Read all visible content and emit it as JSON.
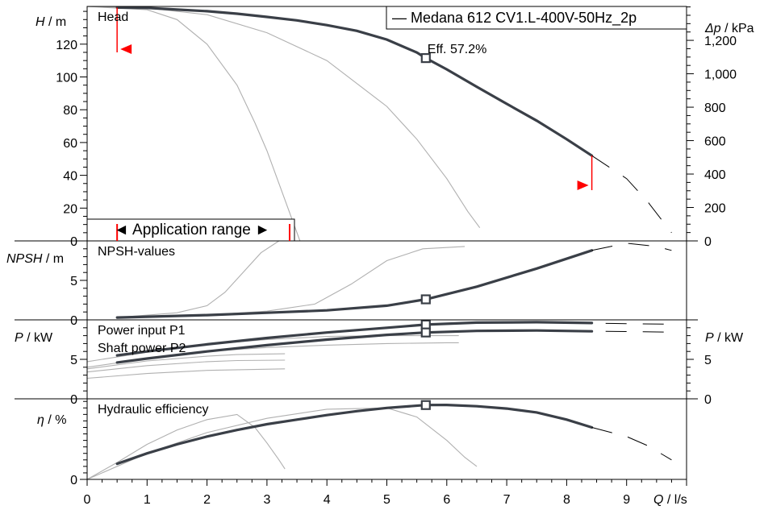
{
  "chart_data": {
    "type": "line",
    "legend": "— Medana 612 CV1.L-400V-50Hz_2p",
    "x_axis": {
      "label_var": "Q",
      "label_unit": " / l/s",
      "range": [
        0,
        10
      ],
      "ticks": [
        "0",
        "1",
        "2",
        "3",
        "4",
        "5",
        "6",
        "7",
        "8",
        "9"
      ]
    },
    "duty_point": {
      "q": 5.65,
      "annotation": "Eff. 57.2%"
    },
    "application_range": {
      "label": "◄ Application range ►",
      "q_min": 0.5,
      "q_max": 8.42
    },
    "panels": [
      {
        "id": "head",
        "title": "Head",
        "ylabel_var": "H",
        "ylabel_unit": " / m",
        "ylim": [
          0,
          143
        ],
        "yticks": [
          0,
          20,
          40,
          60,
          80,
          100,
          120
        ],
        "right_label_var": "Δp",
        "right_label_unit": " / kPa",
        "right_ticks": [
          0,
          200,
          400,
          600,
          800,
          1000,
          1200
        ],
        "right_tick_labels": [
          "0",
          "200",
          "400",
          "600",
          "800",
          "1,000",
          "1,200"
        ],
        "right_factor": 9.81,
        "main": [
          [
            0.5,
            142.3
          ],
          [
            1,
            142.1
          ],
          [
            1.5,
            141.1
          ],
          [
            2,
            140.1
          ],
          [
            2.5,
            138.6
          ],
          [
            3,
            136.6
          ],
          [
            3.5,
            134.5
          ],
          [
            4,
            131.6
          ],
          [
            4.5,
            128.1
          ],
          [
            5,
            122.8
          ],
          [
            5.5,
            114.9
          ],
          [
            5.65,
            111.5
          ],
          [
            6,
            104.6
          ],
          [
            6.5,
            94.0
          ],
          [
            7,
            83.6
          ],
          [
            7.5,
            73.3
          ],
          [
            8,
            62.0
          ],
          [
            8.42,
            52.0
          ]
        ],
        "extension": [
          [
            8.42,
            52.0
          ],
          [
            9.0,
            38.0
          ],
          [
            9.35,
            24.0
          ],
          [
            9.75,
            5.0
          ]
        ],
        "thin": [
          [
            [
              0,
              143
            ],
            [
              1.0,
              141
            ],
            [
              1.5,
              135
            ],
            [
              2.0,
              120
            ],
            [
              2.5,
              95
            ],
            [
              2.8,
              72
            ],
            [
              3.0,
              55
            ],
            [
              3.3,
              25
            ],
            [
              3.55,
              0
            ]
          ],
          [
            [
              0,
              143
            ],
            [
              1.0,
              142
            ],
            [
              2.0,
              138
            ],
            [
              3.0,
              127
            ],
            [
              4.0,
              110
            ],
            [
              5.0,
              82
            ],
            [
              5.5,
              62
            ],
            [
              6.0,
              38
            ],
            [
              6.35,
              18
            ],
            [
              6.55,
              8
            ]
          ]
        ]
      },
      {
        "id": "npsh",
        "title": "NPSH-values",
        "ylabel_var": "NPSH",
        "ylabel_unit": " / m",
        "ylim": [
          0,
          10
        ],
        "yticks": [
          0,
          5
        ],
        "main": [
          [
            0.5,
            0.3
          ],
          [
            1,
            0.4
          ],
          [
            2,
            0.6
          ],
          [
            3,
            0.9
          ],
          [
            4,
            1.2
          ],
          [
            5,
            1.8
          ],
          [
            5.65,
            2.6
          ],
          [
            6.5,
            4.2
          ],
          [
            7.5,
            6.5
          ],
          [
            8.42,
            8.8
          ]
        ],
        "extension": [
          [
            8.42,
            8.8
          ],
          [
            9.0,
            9.7
          ],
          [
            9.5,
            9.3
          ],
          [
            9.75,
            8.8
          ]
        ],
        "thin": [
          [
            [
              0.5,
              0.3
            ],
            [
              1.5,
              0.9
            ],
            [
              2.0,
              1.8
            ],
            [
              2.3,
              3.5
            ],
            [
              2.6,
              6.0
            ],
            [
              2.9,
              8.5
            ],
            [
              3.2,
              10
            ]
          ],
          [
            [
              0.5,
              0.3
            ],
            [
              2.0,
              0.6
            ],
            [
              3.0,
              1.1
            ],
            [
              3.8,
              2.0
            ],
            [
              4.4,
              4.5
            ],
            [
              5.0,
              7.5
            ],
            [
              5.6,
              9.0
            ],
            [
              6.3,
              9.3
            ]
          ]
        ]
      },
      {
        "id": "power",
        "title": "Power input P1",
        "title2": "Shaft power P2",
        "ylabel_var": "P",
        "ylabel_unit": "  / kW",
        "ylim": [
          0,
          10
        ],
        "yticks": [
          0,
          5
        ],
        "right_label_var": "P",
        "right_label_unit": "  / kW",
        "right_ticks": [
          0,
          5
        ],
        "right_tick_labels": [
          "0",
          "5"
        ],
        "right_factor": 1,
        "main": [
          [
            0.5,
            5.5
          ],
          [
            1,
            6.0
          ],
          [
            2,
            6.9
          ],
          [
            3,
            7.7
          ],
          [
            4,
            8.4
          ],
          [
            5,
            9.0
          ],
          [
            5.65,
            9.4
          ],
          [
            6.5,
            9.65
          ],
          [
            7.5,
            9.7
          ],
          [
            8.42,
            9.6
          ]
        ],
        "main2": [
          [
            0.5,
            4.6
          ],
          [
            1,
            5.1
          ],
          [
            2,
            6.0
          ],
          [
            3,
            6.8
          ],
          [
            4,
            7.5
          ],
          [
            5,
            8.1
          ],
          [
            5.65,
            8.4
          ],
          [
            6.5,
            8.6
          ],
          [
            7.5,
            8.65
          ],
          [
            8.42,
            8.55
          ]
        ],
        "extension": [
          [
            8.65,
            9.55
          ],
          [
            9.75,
            9.45
          ]
        ],
        "extension2": [
          [
            8.65,
            8.55
          ],
          [
            9.75,
            8.45
          ]
        ],
        "thin": [
          [
            [
              0,
              4.7
            ],
            [
              1.0,
              5.9
            ],
            [
              2.0,
              6.9
            ],
            [
              3.0,
              7.5
            ],
            [
              4.0,
              7.9
            ],
            [
              5.0,
              8.0
            ],
            [
              6.0,
              8.0
            ],
            [
              6.2,
              8.0
            ]
          ],
          [
            [
              0,
              4.0
            ],
            [
              1.0,
              5.1
            ],
            [
              2.0,
              6.0
            ],
            [
              3.0,
              6.5
            ],
            [
              4.0,
              6.8
            ],
            [
              5.0,
              7.0
            ],
            [
              6.0,
              7.1
            ],
            [
              6.2,
              7.1
            ]
          ],
          [
            [
              0,
              3.8
            ],
            [
              1.0,
              4.8
            ],
            [
              2.0,
              5.4
            ],
            [
              2.5,
              5.6
            ],
            [
              3.3,
              5.7
            ]
          ],
          [
            [
              0,
              3.4
            ],
            [
              1.0,
              4.2
            ],
            [
              2.0,
              4.7
            ],
            [
              2.5,
              4.85
            ],
            [
              3.3,
              4.9
            ]
          ],
          [
            [
              0,
              2.6
            ],
            [
              1.0,
              3.2
            ],
            [
              2.0,
              3.6
            ],
            [
              3.3,
              3.8
            ]
          ]
        ]
      },
      {
        "id": "eff",
        "title": "Hydraulic efficiency",
        "ylabel_var": "η",
        "ylabel_unit": " / %",
        "ylim": [
          0,
          62
        ],
        "yticks": [
          0
        ],
        "main": [
          [
            0.5,
            12
          ],
          [
            1,
            20
          ],
          [
            1.5,
            27
          ],
          [
            2,
            33
          ],
          [
            2.5,
            38
          ],
          [
            3,
            42.5
          ],
          [
            3.5,
            46
          ],
          [
            4,
            49.5
          ],
          [
            4.5,
            52.5
          ],
          [
            5,
            55
          ],
          [
            5.65,
            57.2
          ],
          [
            6,
            57.3
          ],
          [
            6.5,
            56.3
          ],
          [
            7,
            54.5
          ],
          [
            7.5,
            51.5
          ],
          [
            8,
            46
          ],
          [
            8.42,
            40
          ]
        ],
        "extension": [
          [
            8.42,
            40
          ],
          [
            9.0,
            33
          ],
          [
            9.35,
            26
          ],
          [
            9.75,
            15
          ]
        ],
        "thin": [
          [
            [
              0,
              0
            ],
            [
              0.5,
              13
            ],
            [
              1.0,
              27
            ],
            [
              1.5,
              38
            ],
            [
              2.0,
              46
            ],
            [
              2.5,
              50
            ],
            [
              2.8,
              40
            ],
            [
              3.0,
              28
            ],
            [
              3.2,
              15
            ],
            [
              3.3,
              8
            ]
          ],
          [
            [
              0,
              0
            ],
            [
              1.0,
              20
            ],
            [
              2.0,
              36
            ],
            [
              3.0,
              47
            ],
            [
              4.0,
              54
            ],
            [
              5.0,
              55
            ],
            [
              5.5,
              48
            ],
            [
              6.0,
              30
            ],
            [
              6.3,
              17
            ],
            [
              6.5,
              10
            ]
          ]
        ]
      }
    ]
  }
}
